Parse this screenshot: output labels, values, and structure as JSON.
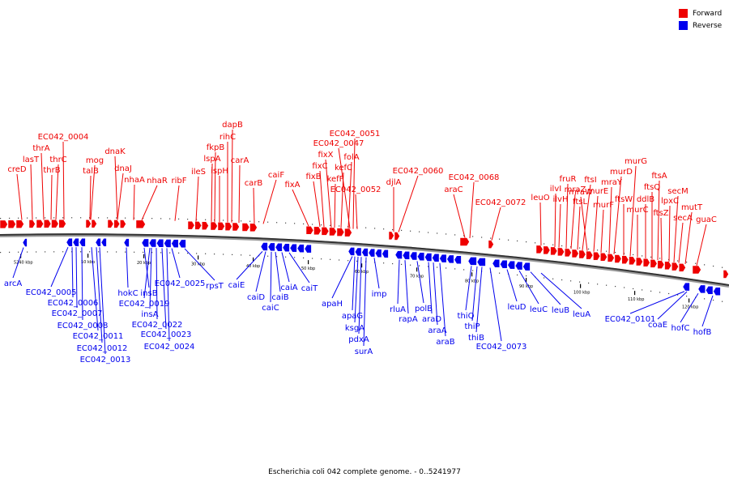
{
  "title": "Escherichia coli 042 complete genome. - 0..5241977",
  "legend": {
    "forward": {
      "label": "Forward",
      "color": "#ee0000"
    },
    "reverse": {
      "label": "Reverse",
      "color": "#0000ee"
    }
  },
  "genome": {
    "name": "Escherichia coli 042",
    "length_bp": 5241977,
    "view_start": "0",
    "view_end": "5241977"
  },
  "ticks": [
    "5240 kbp",
    "10 kbp",
    "20 kbp",
    "30 kbp",
    "40 kbp",
    "50 kbp",
    "60 kbp",
    "70 kbp",
    "80 kbp",
    "90 kbp",
    "100 kbp",
    "110 kbp",
    "120 kbp"
  ],
  "forward_genes": [
    "creD",
    "lasT",
    "thrA",
    "EC042_0004",
    "thrB",
    "thrC",
    "talB",
    "mog",
    "dnaJ",
    "dnaK",
    "nhaA",
    "nhaR",
    "ribF",
    "ileS",
    "lspA",
    "fkpB",
    "ispH",
    "rihC",
    "dapB",
    "carA",
    "carB",
    "caiF",
    "fixA",
    "fixB",
    "fixC",
    "fixX",
    "kefF",
    "kefC",
    "EC042_0047",
    "EC042_0051",
    "folA",
    "EC042_0052",
    "djlA",
    "EC042_0060",
    "araC",
    "EC042_0068",
    "EC042_0072",
    "leuO",
    "ilvI",
    "ilvH",
    "fruR",
    "mraZ",
    "ftsL",
    "ftsI",
    "mraW",
    "murE",
    "murF",
    "mraY",
    "murD",
    "ftsW",
    "murG",
    "murC",
    "ddlB",
    "ftsQ",
    "ftsA",
    "ftsZ",
    "lpxC",
    "secM",
    "secA",
    "mutT",
    "guaC"
  ],
  "reverse_genes": [
    "arcA",
    "EC042_0005",
    "EC042_0006",
    "EC042_0007",
    "EC042_0008",
    "EC042_0011",
    "EC042_0012",
    "EC042_0013",
    "hokC",
    "insB",
    "EC042_0019",
    "insA",
    "EC042_0022",
    "EC042_0023",
    "EC042_0024",
    "EC042_0025",
    "rpsT",
    "caiE",
    "caiD",
    "caiC",
    "caiB",
    "caiA",
    "caiT",
    "apaH",
    "apaG",
    "ksgA",
    "pdxA",
    "surA",
    "imp",
    "rluA",
    "rapA",
    "polB",
    "araD",
    "araA",
    "araB",
    "thiQ",
    "thiP",
    "thiB",
    "EC042_0073",
    "leuD",
    "leuC",
    "leuB",
    "leuA",
    "EC042_0101",
    "coaE",
    "hofC",
    "hofB"
  ]
}
